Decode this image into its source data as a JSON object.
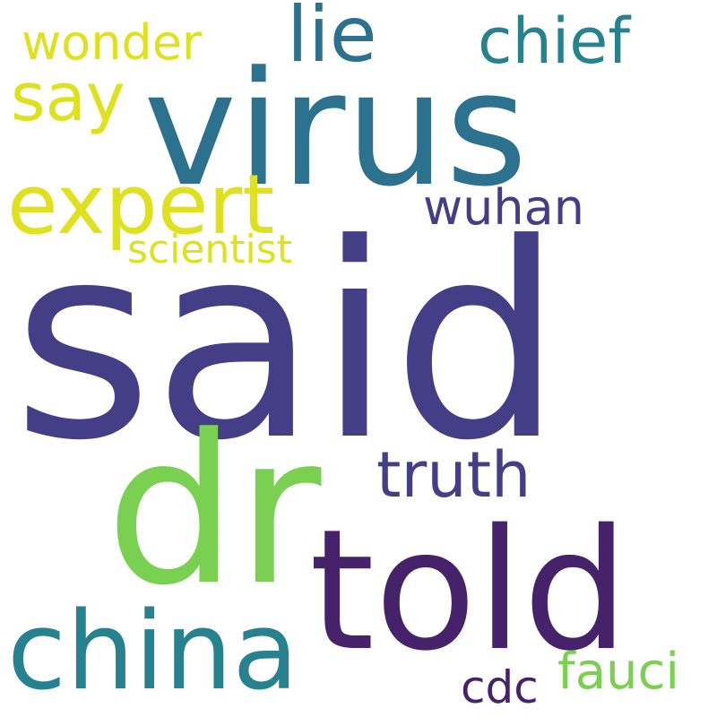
{
  "words": {
    "said": {
      "text": "said",
      "color": "#433e85"
    },
    "virus": {
      "text": "virus",
      "color": "#2c718e"
    },
    "dr": {
      "text": "dr",
      "color": "#7ad151"
    },
    "told": {
      "text": "told",
      "color": "#46226a"
    },
    "china": {
      "text": "china",
      "color": "#26828e"
    },
    "expert": {
      "text": "expert",
      "color": "#e0e11e"
    },
    "truth": {
      "text": "truth",
      "color": "#433e85"
    },
    "lie": {
      "text": "lie",
      "color": "#2c718e"
    },
    "chief": {
      "text": "chief",
      "color": "#26828e"
    },
    "say": {
      "text": "say",
      "color": "#e0e11e"
    },
    "wonder": {
      "text": "wonder",
      "color": "#e0e11e"
    },
    "wuhan": {
      "text": "wuhan",
      "color": "#433e85"
    },
    "scientist": {
      "text": "scientist",
      "color": "#e0e11e"
    },
    "cdc": {
      "text": "cdc",
      "color": "#46226a"
    },
    "fauci": {
      "text": "fauci",
      "color": "#7ad151"
    }
  }
}
